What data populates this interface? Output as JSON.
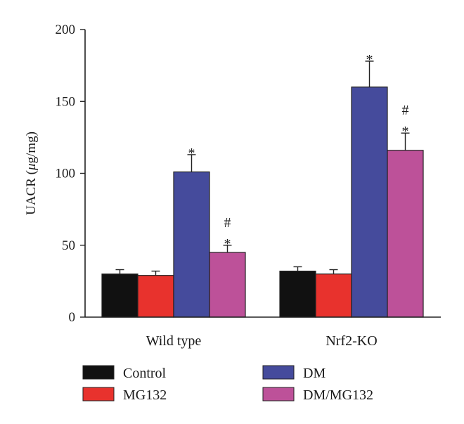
{
  "chart_data": {
    "type": "bar",
    "xlabel": "",
    "ylabel": {
      "prefix": "UACR (",
      "unit_mu": "μ",
      "unit_rest": "g/mg)"
    },
    "ylim": [
      0,
      200
    ],
    "yticks": [
      "0",
      "50",
      "100",
      "150",
      "200"
    ],
    "grid": false,
    "legend_placement": "bottom",
    "categories": [
      "Wild type",
      "Nrf2-KO"
    ],
    "series": [
      {
        "name": "Control",
        "color": "#111111",
        "values": [
          30,
          32
        ],
        "errors": [
          3,
          3
        ]
      },
      {
        "name": "MG132",
        "color": "#e8322d",
        "values": [
          29,
          30
        ],
        "errors": [
          3,
          3
        ]
      },
      {
        "name": "DM",
        "color": "#454b9c",
        "values": [
          101,
          160
        ],
        "errors": [
          12,
          18
        ]
      },
      {
        "name": "DM/MG132",
        "color": "#bd5199",
        "values": [
          45,
          116
        ],
        "errors": [
          5,
          12
        ]
      }
    ],
    "annotations": [
      {
        "category": 0,
        "series": 2,
        "text": "*"
      },
      {
        "category": 0,
        "series": 3,
        "text": "#\n*"
      },
      {
        "category": 1,
        "series": 2,
        "text": "*"
      },
      {
        "category": 1,
        "series": 3,
        "text": "#\n*"
      }
    ]
  }
}
